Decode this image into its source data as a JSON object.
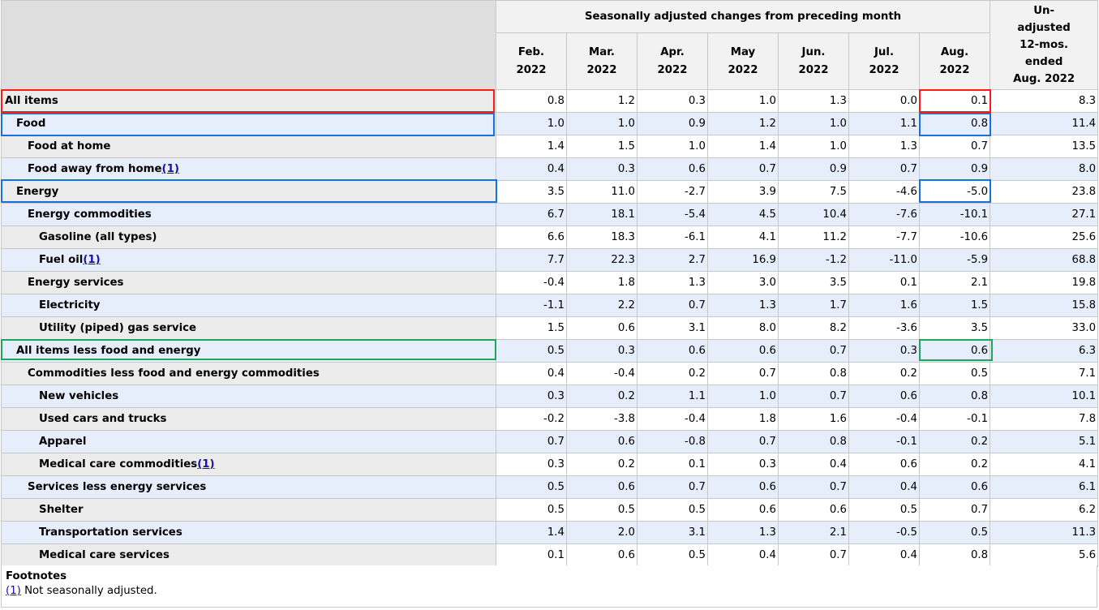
{
  "header": {
    "group_title": "Seasonally adjusted changes from preceding month",
    "unadjusted_line1": "Un-",
    "unadjusted_line2": "adjusted",
    "unadjusted_line3": "12-mos.",
    "unadjusted_line4": "ended",
    "unadjusted_line5": "Aug. 2022",
    "months": [
      {
        "m": "Feb.",
        "y": "2022"
      },
      {
        "m": "Mar.",
        "y": "2022"
      },
      {
        "m": "Apr.",
        "y": "2022"
      },
      {
        "m": "May",
        "y": "2022"
      },
      {
        "m": "Jun.",
        "y": "2022"
      },
      {
        "m": "Jul.",
        "y": "2022"
      },
      {
        "m": "Aug.",
        "y": "2022"
      }
    ]
  },
  "rows": [
    {
      "label": "All items",
      "level": 0,
      "fn": "",
      "values": [
        "0.8",
        "1.2",
        "0.3",
        "1.0",
        "1.3",
        "0.0",
        "0.1",
        "8.3"
      ]
    },
    {
      "label": "Food",
      "level": 1,
      "fn": "",
      "values": [
        "1.0",
        "1.0",
        "0.9",
        "1.2",
        "1.0",
        "1.1",
        "0.8",
        "11.4"
      ]
    },
    {
      "label": "Food at home",
      "level": 2,
      "fn": "",
      "values": [
        "1.4",
        "1.5",
        "1.0",
        "1.4",
        "1.0",
        "1.3",
        "0.7",
        "13.5"
      ]
    },
    {
      "label": "Food away from home",
      "level": 2,
      "fn": "(1)",
      "values": [
        "0.4",
        "0.3",
        "0.6",
        "0.7",
        "0.9",
        "0.7",
        "0.9",
        "8.0"
      ]
    },
    {
      "label": "Energy",
      "level": 1,
      "fn": "",
      "values": [
        "3.5",
        "11.0",
        "-2.7",
        "3.9",
        "7.5",
        "-4.6",
        "-5.0",
        "23.8"
      ]
    },
    {
      "label": "Energy commodities",
      "level": 2,
      "fn": "",
      "values": [
        "6.7",
        "18.1",
        "-5.4",
        "4.5",
        "10.4",
        "-7.6",
        "-10.1",
        "27.1"
      ]
    },
    {
      "label": "Gasoline (all types)",
      "level": 3,
      "fn": "",
      "values": [
        "6.6",
        "18.3",
        "-6.1",
        "4.1",
        "11.2",
        "-7.7",
        "-10.6",
        "25.6"
      ]
    },
    {
      "label": "Fuel oil",
      "level": 3,
      "fn": "(1)",
      "values": [
        "7.7",
        "22.3",
        "2.7",
        "16.9",
        "-1.2",
        "-11.0",
        "-5.9",
        "68.8"
      ]
    },
    {
      "label": "Energy services",
      "level": 2,
      "fn": "",
      "values": [
        "-0.4",
        "1.8",
        "1.3",
        "3.0",
        "3.5",
        "0.1",
        "2.1",
        "19.8"
      ]
    },
    {
      "label": "Electricity",
      "level": 3,
      "fn": "",
      "values": [
        "-1.1",
        "2.2",
        "0.7",
        "1.3",
        "1.7",
        "1.6",
        "1.5",
        "15.8"
      ]
    },
    {
      "label": "Utility (piped) gas service",
      "level": 3,
      "fn": "",
      "values": [
        "1.5",
        "0.6",
        "3.1",
        "8.0",
        "8.2",
        "-3.6",
        "3.5",
        "33.0"
      ]
    },
    {
      "label": "All items less food and energy",
      "level": 1,
      "fn": "",
      "values": [
        "0.5",
        "0.3",
        "0.6",
        "0.6",
        "0.7",
        "0.3",
        "0.6",
        "6.3"
      ]
    },
    {
      "label": "Commodities less food and energy commodities",
      "level": 2,
      "fn": "",
      "values": [
        "0.4",
        "-0.4",
        "0.2",
        "0.7",
        "0.8",
        "0.2",
        "0.5",
        "7.1"
      ]
    },
    {
      "label": "New vehicles",
      "level": 3,
      "fn": "",
      "values": [
        "0.3",
        "0.2",
        "1.1",
        "1.0",
        "0.7",
        "0.6",
        "0.8",
        "10.1"
      ]
    },
    {
      "label": "Used cars and trucks",
      "level": 3,
      "fn": "",
      "values": [
        "-0.2",
        "-3.8",
        "-0.4",
        "1.8",
        "1.6",
        "-0.4",
        "-0.1",
        "7.8"
      ]
    },
    {
      "label": "Apparel",
      "level": 3,
      "fn": "",
      "values": [
        "0.7",
        "0.6",
        "-0.8",
        "0.7",
        "0.8",
        "-0.1",
        "0.2",
        "5.1"
      ]
    },
    {
      "label": "Medical care commodities",
      "level": 3,
      "fn": "(1)",
      "values": [
        "0.3",
        "0.2",
        "0.1",
        "0.3",
        "0.4",
        "0.6",
        "0.2",
        "4.1"
      ]
    },
    {
      "label": "Services less energy services",
      "level": 2,
      "fn": "",
      "values": [
        "0.5",
        "0.6",
        "0.7",
        "0.6",
        "0.7",
        "0.4",
        "0.6",
        "6.1"
      ]
    },
    {
      "label": "Shelter",
      "level": 3,
      "fn": "",
      "values": [
        "0.5",
        "0.5",
        "0.5",
        "0.6",
        "0.6",
        "0.5",
        "0.7",
        "6.2"
      ]
    },
    {
      "label": "Transportation services",
      "level": 3,
      "fn": "",
      "values": [
        "1.4",
        "2.0",
        "3.1",
        "1.3",
        "2.1",
        "-0.5",
        "0.5",
        "11.3"
      ]
    },
    {
      "label": "Medical care services",
      "level": 3,
      "fn": "",
      "values": [
        "0.1",
        "0.6",
        "0.5",
        "0.4",
        "0.7",
        "0.4",
        "0.8",
        "5.6"
      ]
    }
  ],
  "footnotes": {
    "title": "Footnotes",
    "ref": "(1)",
    "text": " Not seasonally adjusted."
  },
  "highlight_colors": {
    "red": "#ff1a1a",
    "blue": "#1a6fe0",
    "green": "#1fa65a"
  }
}
